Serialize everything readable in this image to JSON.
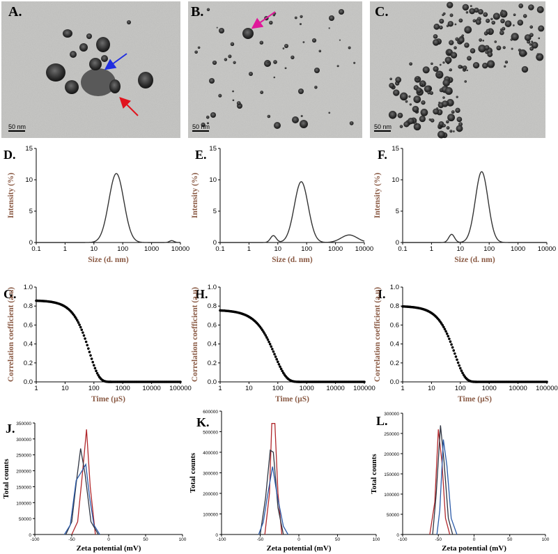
{
  "tem": {
    "panels": [
      {
        "label": "A.",
        "scale_text": "50 nm",
        "arrows": [
          "blue",
          "red"
        ]
      },
      {
        "label": "B.",
        "scale_text": "50 nm",
        "arrows": [
          "magenta"
        ]
      },
      {
        "label": "C.",
        "scale_text": "50 nm",
        "arrows": []
      }
    ],
    "arrow_colors": {
      "blue": "#1f2ee0",
      "red": "#e0141e",
      "magenta": "#e0189a"
    }
  },
  "colors": {
    "axis_title": "#8a5a44",
    "trace": "#333333",
    "zeta_red": "#b0272b",
    "zeta_dark": "#2e3340",
    "zeta_blue": "#2a5aa8"
  },
  "chart_data": [
    {
      "panel": "D.",
      "type": "line",
      "xlabel": "Size (d. nm)",
      "ylabel": "Intensity (%)",
      "xscale": "log",
      "xlim": [
        0.1,
        10000
      ],
      "ylim": [
        0,
        15
      ],
      "xticks": [
        "0.1",
        "1",
        "10",
        "100",
        "1000",
        "10000"
      ],
      "yticks": [
        "0",
        "5",
        "10",
        "15"
      ],
      "peaks": [
        {
          "center": 60,
          "height": 11.0,
          "width": 0.26
        },
        {
          "center": 5000,
          "height": 0.3,
          "width": 0.08
        }
      ]
    },
    {
      "panel": "E.",
      "type": "line",
      "xlabel": "Size (d. nm)",
      "ylabel": "Intensity (%)",
      "xscale": "log",
      "xlim": [
        0.1,
        10000
      ],
      "ylim": [
        0,
        15
      ],
      "xticks": [
        "0.1",
        "1",
        "10",
        "100",
        "1000",
        "10000"
      ],
      "yticks": [
        "0",
        "5",
        "10",
        "15"
      ],
      "peaks": [
        {
          "center": 7,
          "height": 1.1,
          "width": 0.1
        },
        {
          "center": 65,
          "height": 9.7,
          "width": 0.24
        },
        {
          "center": 3000,
          "height": 1.2,
          "width": 0.28
        }
      ]
    },
    {
      "panel": "F.",
      "type": "line",
      "xlabel": "Size (d. nm)",
      "ylabel": "Intensity (%)",
      "xscale": "log",
      "xlim": [
        0.1,
        10000
      ],
      "ylim": [
        0,
        15
      ],
      "xticks": [
        "0.1",
        "1",
        "10",
        "100",
        "1000",
        "10000"
      ],
      "yticks": [
        "0",
        "5",
        "10",
        "15"
      ],
      "peaks": [
        {
          "center": 5,
          "height": 1.3,
          "width": 0.1
        },
        {
          "center": 55,
          "height": 11.3,
          "width": 0.22
        }
      ]
    },
    {
      "panel": "G.",
      "type": "scatter",
      "xlabel": "Time (µS)",
      "ylabel": "Correlation coefficient (a.u)",
      "xscale": "log",
      "xlim": [
        1,
        100000
      ],
      "ylim": [
        0,
        1.0
      ],
      "xticks": [
        "1",
        "10",
        "100",
        "1000",
        "10000",
        "100000"
      ],
      "yticks": [
        "0.0",
        "0.2",
        "0.4",
        "0.6",
        "0.8",
        "1.0"
      ],
      "decay": {
        "y0": 0.86,
        "tau": 70,
        "beta": 1.3
      }
    },
    {
      "panel": "H.",
      "type": "scatter",
      "xlabel": "Time (µS)",
      "ylabel": "Correlation coefficient (a.u)",
      "xscale": "log",
      "xlim": [
        1,
        100000
      ],
      "ylim": [
        0,
        1.0
      ],
      "xticks": [
        "1",
        "10",
        "100",
        "1000",
        "10000",
        "100000"
      ],
      "yticks": [
        "0.0",
        "0.2",
        "0.4",
        "0.6",
        "0.8",
        "1.0"
      ],
      "decay": {
        "y0": 0.76,
        "tau": 80,
        "beta": 1.1
      }
    },
    {
      "panel": "I.",
      "type": "scatter",
      "xlabel": "Time (µS)",
      "ylabel": "Correlation coefficient (a.u)",
      "xscale": "log",
      "xlim": [
        1,
        100000
      ],
      "ylim": [
        0,
        1.0
      ],
      "xticks": [
        "1",
        "10",
        "100",
        "1000",
        "10000",
        "100000"
      ],
      "yticks": [
        "0.0",
        "0.2",
        "0.4",
        "0.6",
        "0.8",
        "1.0"
      ],
      "decay": {
        "y0": 0.8,
        "tau": 65,
        "beta": 1.25
      }
    },
    {
      "panel": "J.",
      "type": "line",
      "xlabel": "Zeta potential (mV)",
      "ylabel": "Total counts",
      "xlim": [
        -100,
        100
      ],
      "ylim": [
        0,
        350000
      ],
      "xticks": [
        "-100",
        "-50",
        "0",
        "50",
        "100"
      ],
      "yticks": [
        "0",
        "50000",
        "100000",
        "150000",
        "200000",
        "250000",
        "300000",
        "350000"
      ],
      "series": [
        {
          "color": "red",
          "points": [
            [
              -50,
              0
            ],
            [
              -42,
              40000
            ],
            [
              -36,
              180000
            ],
            [
              -30,
              330000
            ],
            [
              -25,
              150000
            ],
            [
              -18,
              0
            ]
          ]
        },
        {
          "color": "dark",
          "points": [
            [
              -58,
              0
            ],
            [
              -50,
              40000
            ],
            [
              -44,
              160000
            ],
            [
              -38,
              270000
            ],
            [
              -32,
              190000
            ],
            [
              -24,
              40000
            ],
            [
              -14,
              0
            ]
          ]
        },
        {
          "color": "blue",
          "points": [
            [
              -60,
              0
            ],
            [
              -52,
              30000
            ],
            [
              -44,
              170000
            ],
            [
              -36,
              200000
            ],
            [
              -31,
              220000
            ],
            [
              -26,
              120000
            ],
            [
              -20,
              30000
            ],
            [
              -12,
              0
            ]
          ]
        }
      ]
    },
    {
      "panel": "K.",
      "type": "line",
      "xlabel": "Zeta potential (mV)",
      "ylabel": "Total counts",
      "xlim": [
        -100,
        100
      ],
      "ylim": [
        0,
        600000
      ],
      "xticks": [
        "-100",
        "-50",
        "0",
        "50",
        "100"
      ],
      "yticks": [
        "0",
        "100000",
        "200000",
        "300000",
        "400000",
        "500000",
        "600000"
      ],
      "series": [
        {
          "color": "red",
          "points": [
            [
              -44,
              0
            ],
            [
              -38,
              200000
            ],
            [
              -35,
              540000
            ],
            [
              -31,
              540000
            ],
            [
              -27,
              200000
            ],
            [
              -22,
              0
            ]
          ]
        },
        {
          "color": "dark",
          "points": [
            [
              -50,
              0
            ],
            [
              -43,
              180000
            ],
            [
              -37,
              410000
            ],
            [
              -33,
              400000
            ],
            [
              -27,
              130000
            ],
            [
              -20,
              0
            ]
          ]
        },
        {
          "color": "blue",
          "points": [
            [
              -52,
              0
            ],
            [
              -46,
              60000
            ],
            [
              -40,
              200000
            ],
            [
              -34,
              330000
            ],
            [
              -28,
              190000
            ],
            [
              -20,
              40000
            ],
            [
              -14,
              0
            ]
          ]
        }
      ]
    },
    {
      "panel": "L.",
      "type": "line",
      "xlabel": "Zeta potential (mV)",
      "ylabel": "Total counts",
      "xlim": [
        -100,
        100
      ],
      "ylim": [
        0,
        300000
      ],
      "xticks": [
        "-100",
        "-50",
        "0",
        "50",
        "100"
      ],
      "yticks": [
        "0",
        "50000",
        "100000",
        "150000",
        "200000",
        "250000",
        "300000"
      ],
      "series": [
        {
          "color": "red",
          "points": [
            [
              -62,
              0
            ],
            [
              -55,
              80000
            ],
            [
              -50,
              260000
            ],
            [
              -45,
              180000
            ],
            [
              -40,
              40000
            ],
            [
              -34,
              0
            ]
          ]
        },
        {
          "color": "dark",
          "points": [
            [
              -58,
              0
            ],
            [
              -53,
              100000
            ],
            [
              -47,
              270000
            ],
            [
              -42,
              180000
            ],
            [
              -36,
              40000
            ],
            [
              -30,
              0
            ]
          ]
        },
        {
          "color": "blue",
          "points": [
            [
              -52,
              0
            ],
            [
              -48,
              60000
            ],
            [
              -43,
              235000
            ],
            [
              -38,
              170000
            ],
            [
              -32,
              40000
            ],
            [
              -24,
              0
            ]
          ]
        }
      ]
    }
  ]
}
